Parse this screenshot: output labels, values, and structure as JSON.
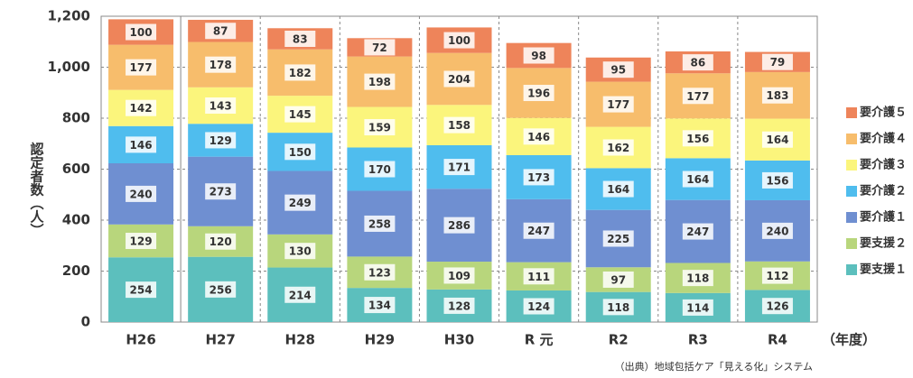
{
  "chart_data": {
    "type": "stacked_bar",
    "y_label": "認定者数（人）",
    "x_label": "（年度）",
    "source": "（出典）地域包括ケア「見える化」システム",
    "categories": [
      "H26",
      "H27",
      "H28",
      "H29",
      "H30",
      "R 元",
      "R2",
      "R3",
      "R4"
    ],
    "ylim": [
      0,
      1200
    ],
    "yticks": [
      0,
      200,
      400,
      600,
      800,
      {
        "value": 1000,
        "label": "1,000"
      },
      {
        "value": 1200,
        "label": "1,200"
      }
    ],
    "grid": true,
    "legend": "right",
    "series": [
      {
        "name": "要支援１",
        "color": "#5cbfbd",
        "values": [
          254,
          256,
          214,
          134,
          128,
          124,
          118,
          114,
          126
        ]
      },
      {
        "name": "要支援２",
        "color": "#b8d67c",
        "values": [
          129,
          120,
          130,
          123,
          109,
          111,
          97,
          118,
          112
        ]
      },
      {
        "name": "要介護１",
        "color": "#6f8fd1",
        "values": [
          240,
          273,
          249,
          258,
          286,
          247,
          225,
          247,
          240
        ]
      },
      {
        "name": "要介護２",
        "color": "#4fbdee",
        "values": [
          146,
          129,
          150,
          170,
          171,
          173,
          164,
          164,
          156
        ]
      },
      {
        "name": "要介護３",
        "color": "#fbf57c",
        "values": [
          142,
          143,
          145,
          159,
          158,
          146,
          162,
          156,
          164
        ]
      },
      {
        "name": "要介護４",
        "color": "#f7bd6c",
        "values": [
          177,
          178,
          182,
          198,
          204,
          196,
          177,
          177,
          183
        ]
      },
      {
        "name": "要介護５",
        "color": "#ee845a",
        "values": [
          100,
          87,
          83,
          72,
          100,
          98,
          95,
          86,
          79
        ]
      }
    ]
  }
}
